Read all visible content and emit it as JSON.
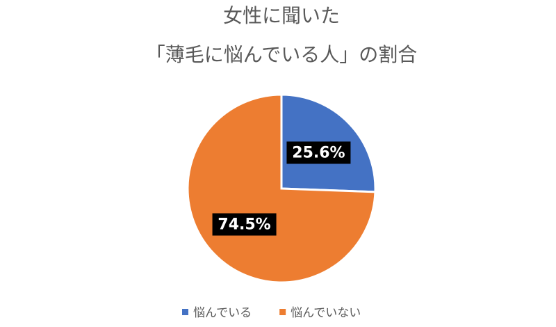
{
  "chart_data": {
    "type": "pie",
    "title": [
      "女性に聞いた",
      "「薄毛に悩んでいる人」の割合"
    ],
    "categories": [
      "悩んでいる",
      "悩んでいない"
    ],
    "values": [
      25.6,
      74.5
    ],
    "value_labels": [
      "25.6%",
      "74.5%"
    ],
    "colors": [
      "#4472c4",
      "#ed7d31"
    ],
    "legend": "bottom"
  }
}
